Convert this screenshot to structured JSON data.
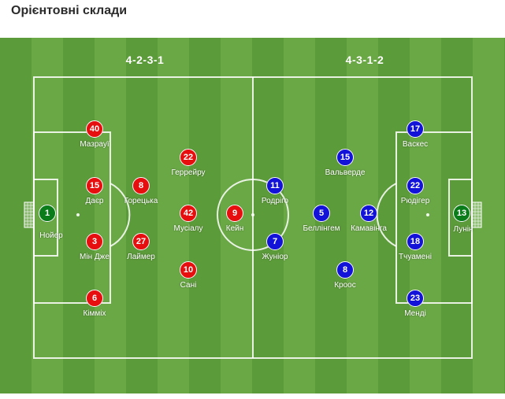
{
  "header": {
    "title": "Орієнтовні склади"
  },
  "formations": {
    "home": "4-2-3-1",
    "away": "4-3-1-2"
  },
  "colors": {
    "home": "#e60e0e",
    "away": "#1212d8",
    "goalkeeper": "#0a7d1a",
    "pitch_dark": "#5c9b3a",
    "pitch_light": "#6aa846"
  },
  "home_players": [
    {
      "number": "1",
      "name": "Нойер"
    },
    {
      "number": "40",
      "name": "Мазрауї"
    },
    {
      "number": "15",
      "name": "Даєр"
    },
    {
      "number": "3",
      "name": "Мін Дже"
    },
    {
      "number": "6",
      "name": "Кімміх"
    },
    {
      "number": "8",
      "name": "Горецька"
    },
    {
      "number": "27",
      "name": "Лаймер"
    },
    {
      "number": "22",
      "name": "Геррейру"
    },
    {
      "number": "42",
      "name": "Мусіалу"
    },
    {
      "number": "10",
      "name": "Сані"
    },
    {
      "number": "9",
      "name": "Кейн"
    }
  ],
  "away_players": [
    {
      "number": "13",
      "name": "Лунін"
    },
    {
      "number": "17",
      "name": "Васкес"
    },
    {
      "number": "22",
      "name": "Рюдігер"
    },
    {
      "number": "18",
      "name": "Тчуамені"
    },
    {
      "number": "23",
      "name": "Менді"
    },
    {
      "number": "15",
      "name": "Вальверде"
    },
    {
      "number": "12",
      "name": "Камавінга"
    },
    {
      "number": "8",
      "name": "Кроос"
    },
    {
      "number": "5",
      "name": "Беллінгем"
    },
    {
      "number": "11",
      "name": "Родріго"
    },
    {
      "number": "7",
      "name": "Жуніор"
    }
  ]
}
